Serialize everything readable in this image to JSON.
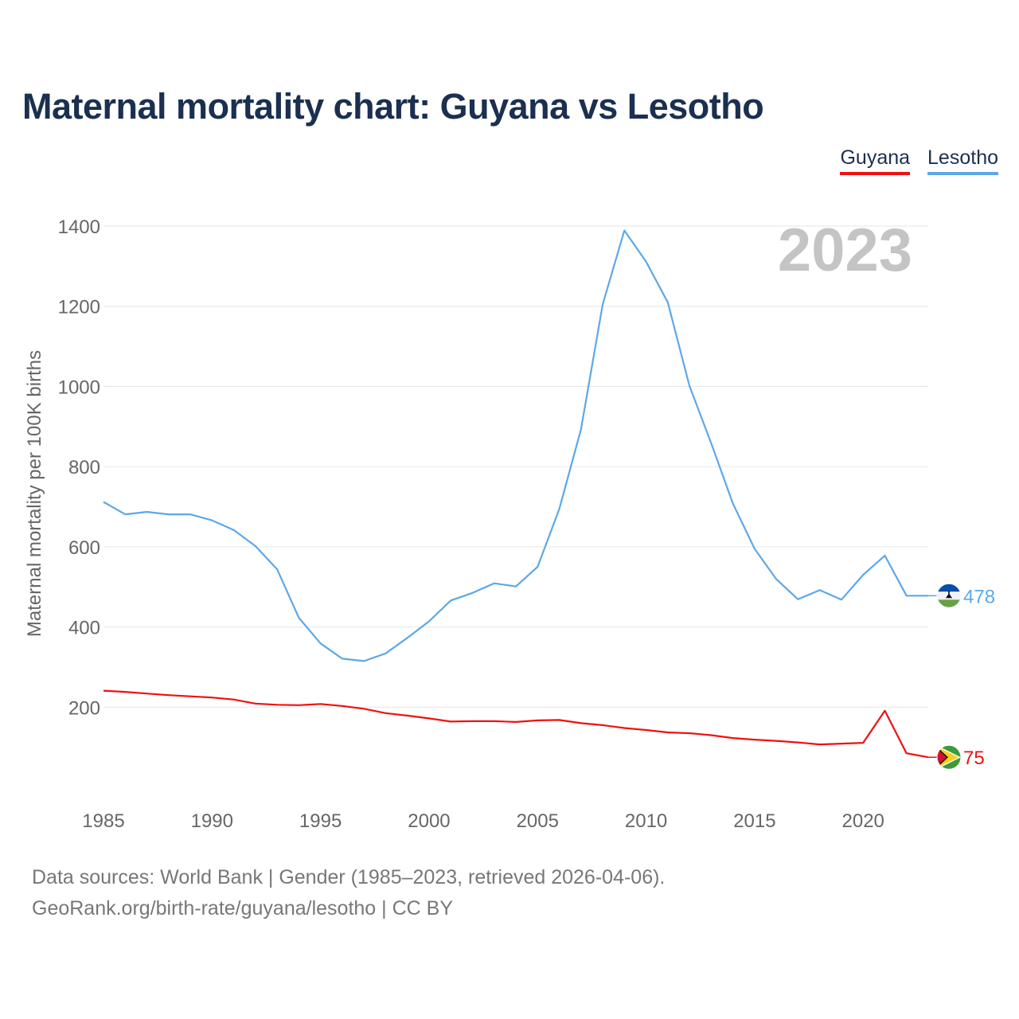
{
  "title": "Maternal mortality chart: Guyana vs Lesotho",
  "legend": [
    {
      "label": "Guyana",
      "color": "#ee1111"
    },
    {
      "label": "Lesotho",
      "color": "#5ca8e8"
    }
  ],
  "year_watermark": "2023",
  "footer": {
    "source": "Data sources: World Bank | Gender (1985–2023, retrieved 2026-04-06).",
    "credit": "GeoRank.org/birth-rate/guyana/lesotho | CC BY"
  },
  "chart_data": {
    "type": "line",
    "title": "Maternal mortality chart: Guyana vs Lesotho",
    "xlabel": "",
    "ylabel": "Maternal mortality per 100K births",
    "xlim": [
      1985,
      2023
    ],
    "ylim": [
      0,
      1400
    ],
    "yticks": [
      200,
      400,
      600,
      800,
      1000,
      1200,
      1400
    ],
    "xticks": [
      1985,
      1990,
      1995,
      2000,
      2005,
      2010,
      2015,
      2020
    ],
    "grid": true,
    "legend_position": "top-right",
    "x": [
      1985,
      1986,
      1987,
      1988,
      1989,
      1990,
      1991,
      1992,
      1993,
      1994,
      1995,
      1996,
      1997,
      1998,
      1999,
      2000,
      2001,
      2002,
      2003,
      2004,
      2005,
      2006,
      2007,
      2008,
      2009,
      2010,
      2011,
      2012,
      2013,
      2014,
      2015,
      2016,
      2017,
      2018,
      2019,
      2020,
      2021,
      2022,
      2023
    ],
    "series": [
      {
        "name": "Guyana",
        "color": "#ee1111",
        "end_label": "75",
        "flag": "guyana-flag",
        "values": [
          241,
          238,
          234,
          230,
          227,
          224,
          219,
          209,
          206,
          205,
          208,
          203,
          196,
          185,
          179,
          172,
          164,
          165,
          165,
          163,
          167,
          168,
          160,
          155,
          148,
          143,
          137,
          135,
          130,
          123,
          119,
          116,
          112,
          107,
          109,
          111,
          191,
          85,
          75
        ]
      },
      {
        "name": "Lesotho",
        "color": "#5ca8e8",
        "end_label": "478",
        "flag": "lesotho-flag",
        "values": [
          712,
          681,
          687,
          681,
          681,
          666,
          642,
          602,
          544,
          423,
          359,
          321,
          315,
          334,
          373,
          414,
          466,
          485,
          509,
          501,
          550,
          694,
          893,
          1205,
          1389,
          1311,
          1210,
          1001,
          858,
          708,
          595,
          519,
          469,
          492,
          468,
          530,
          578,
          478,
          478
        ]
      }
    ]
  }
}
